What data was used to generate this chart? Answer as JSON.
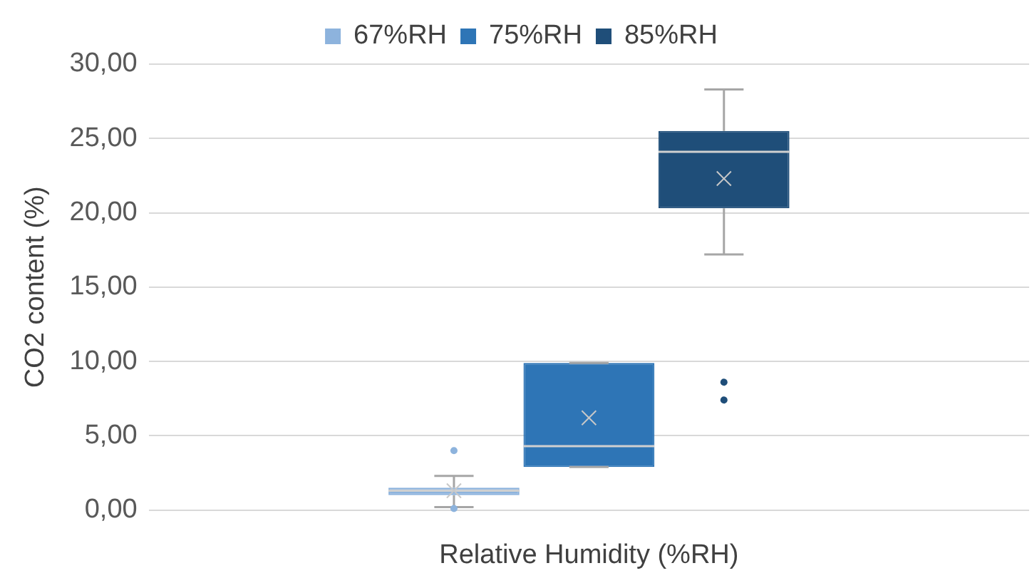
{
  "chart_data": {
    "type": "box",
    "xlabel": "Relative Humidity (%RH)",
    "ylabel": "CO2 content (%)",
    "categories": [
      null
    ],
    "series": [
      {
        "name": "67%RH",
        "color": "#8db3dd",
        "boxes": [
          {
            "low": 0.2,
            "q1": 1.0,
            "median": 1.3,
            "q3": 1.5,
            "high": 2.3,
            "mean": 1.3,
            "outliers": [
              4.0,
              0.1
            ]
          }
        ]
      },
      {
        "name": "75%RH",
        "color": "#2e75b6",
        "boxes": [
          {
            "low": 2.9,
            "q1": 2.9,
            "median": 4.3,
            "q3": 9.9,
            "high": 9.9,
            "mean": 6.2
          }
        ]
      },
      {
        "name": "85%RH",
        "color": "#1f4e79",
        "boxes": [
          {
            "low": 17.2,
            "q1": 20.3,
            "median": 24.1,
            "q3": 25.5,
            "high": 28.3,
            "mean": 22.3,
            "outliers": [
              8.6,
              7.4
            ]
          }
        ]
      }
    ],
    "ylim": [
      0,
      30
    ],
    "yticks": [
      {
        "value": 0,
        "label": "0,00"
      },
      {
        "value": 5,
        "label": "5,00"
      },
      {
        "value": 10,
        "label": "10,00"
      },
      {
        "value": 15,
        "label": "15,00"
      },
      {
        "value": 20,
        "label": "20,00"
      },
      {
        "value": 25,
        "label": "25,00"
      },
      {
        "value": 30,
        "label": "30,00"
      }
    ],
    "grid": "y",
    "legend": "top",
    "marker": "circle"
  }
}
